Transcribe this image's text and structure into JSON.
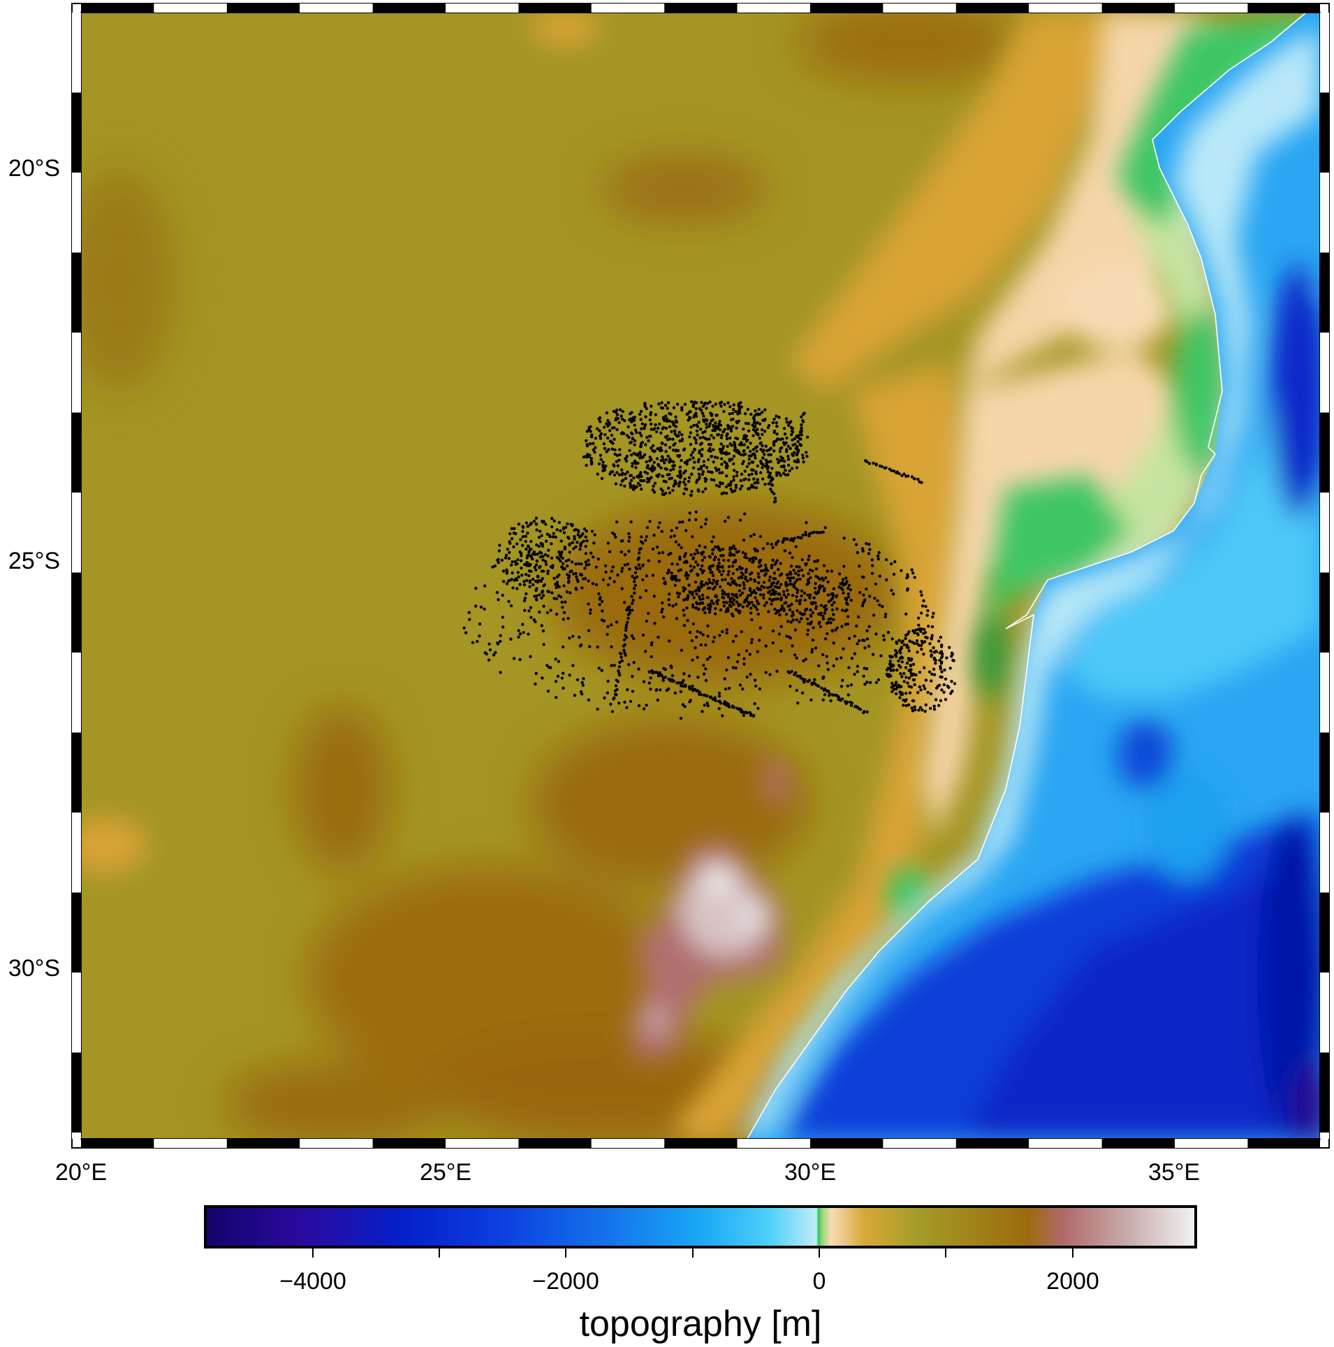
{
  "map": {
    "x_tick_labels": [
      "20°E",
      "25°E",
      "30°E",
      "35°E"
    ],
    "y_tick_labels": [
      "20°S",
      "25°S",
      "30°S"
    ],
    "coastline_color": "#ffffff",
    "point_color": "#000000"
  },
  "colorbar": {
    "title": "topography [m]",
    "tick_labels": [
      "−4000",
      "−2000",
      "0",
      "2000"
    ],
    "colors": [
      "#15036b",
      "#0420c8",
      "#1aa8f6",
      "#c0ecf8",
      "#2ec860",
      "#f8dbb4",
      "#d8a838",
      "#a49c28",
      "#9c6a0c",
      "#b06868",
      "#f2f2f2"
    ]
  }
}
